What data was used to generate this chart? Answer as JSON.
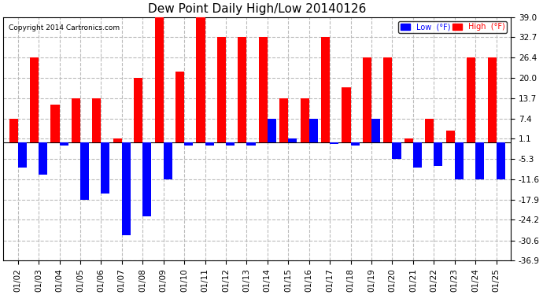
{
  "title": "Dew Point Daily High/Low 20140126",
  "copyright": "Copyright 2014 Cartronics.com",
  "dates": [
    "01/02",
    "01/03",
    "01/04",
    "01/05",
    "01/06",
    "01/07",
    "01/08",
    "01/09",
    "01/10",
    "01/11",
    "01/12",
    "01/13",
    "01/14",
    "01/15",
    "01/16",
    "01/17",
    "01/18",
    "01/19",
    "01/20",
    "01/21",
    "01/22",
    "01/23",
    "01/24",
    "01/25"
  ],
  "high": [
    7.4,
    26.4,
    11.6,
    13.7,
    13.7,
    1.1,
    20.0,
    39.0,
    22.0,
    39.0,
    32.7,
    32.7,
    32.7,
    13.7,
    13.7,
    32.7,
    17.0,
    26.4,
    26.4,
    1.1,
    7.4,
    3.5,
    26.4,
    26.4
  ],
  "low": [
    -8.0,
    -10.0,
    -1.1,
    -18.0,
    -16.0,
    -29.0,
    -23.0,
    -11.6,
    -1.1,
    -1.1,
    -1.1,
    -1.1,
    7.4,
    1.1,
    7.4,
    -0.5,
    -1.1,
    7.4,
    -5.3,
    -8.0,
    -7.4,
    -11.6,
    -11.6,
    -11.6
  ],
  "ylim": [
    -36.9,
    39.0
  ],
  "yticks": [
    -36.9,
    -30.6,
    -24.2,
    -17.9,
    -11.6,
    -5.3,
    1.1,
    7.4,
    13.7,
    20.0,
    26.4,
    32.7,
    39.0
  ],
  "high_color": "#FF0000",
  "low_color": "#0000FF",
  "bg_color": "#FFFFFF",
  "grid_color": "#BBBBBB",
  "bar_width": 0.42,
  "legend_high_label": "High  (°F)",
  "legend_low_label": "Low  (°F)"
}
